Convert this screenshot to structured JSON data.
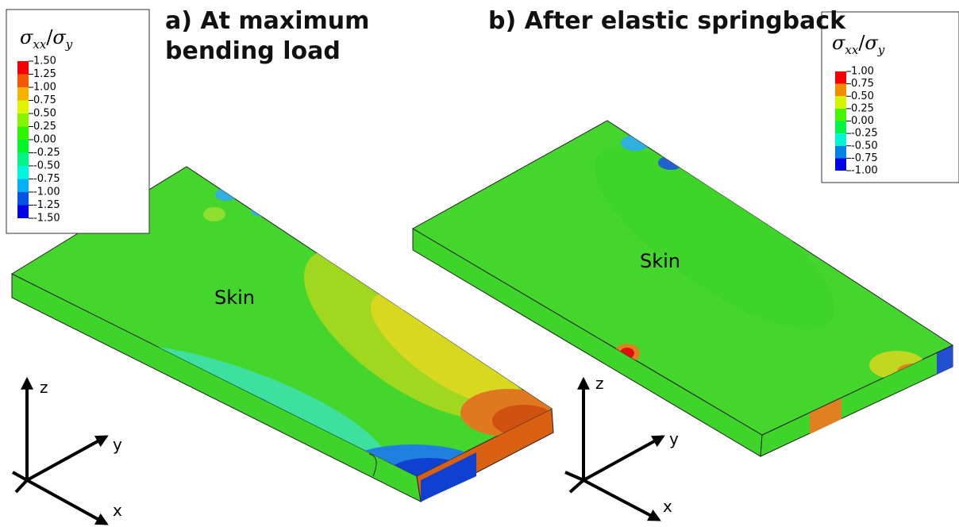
{
  "panels": [
    {
      "title": "a) At maximum bending load",
      "legend": {
        "title": {
          "num": "σ",
          "num_sub": "xx",
          "sep": "/",
          "den": "σ",
          "den_sub": "y"
        },
        "labels": [
          "1.50",
          "1.25",
          "1.00",
          "0.75",
          "0.50",
          "0.25",
          "0.00",
          "-0.25",
          "-0.50",
          "-0.75",
          "-1.00",
          "-1.25",
          "-1.50"
        ]
      },
      "part_label": "Skin",
      "axes": {
        "z": "z",
        "y": "y",
        "x": "x"
      }
    },
    {
      "title": "b) After elastic springback",
      "legend": {
        "title": {
          "num": "σ",
          "num_sub": "xx",
          "sep": "/",
          "den": "σ",
          "den_sub": "y"
        },
        "labels": [
          "1.00",
          "0.75",
          "0.50",
          "0.25",
          "0.00",
          "-0.25",
          "-0.50",
          "-0.75",
          "-1.00"
        ]
      },
      "part_label": "Skin",
      "axes": {
        "z": "z",
        "y": "y",
        "x": "x"
      }
    }
  ]
}
